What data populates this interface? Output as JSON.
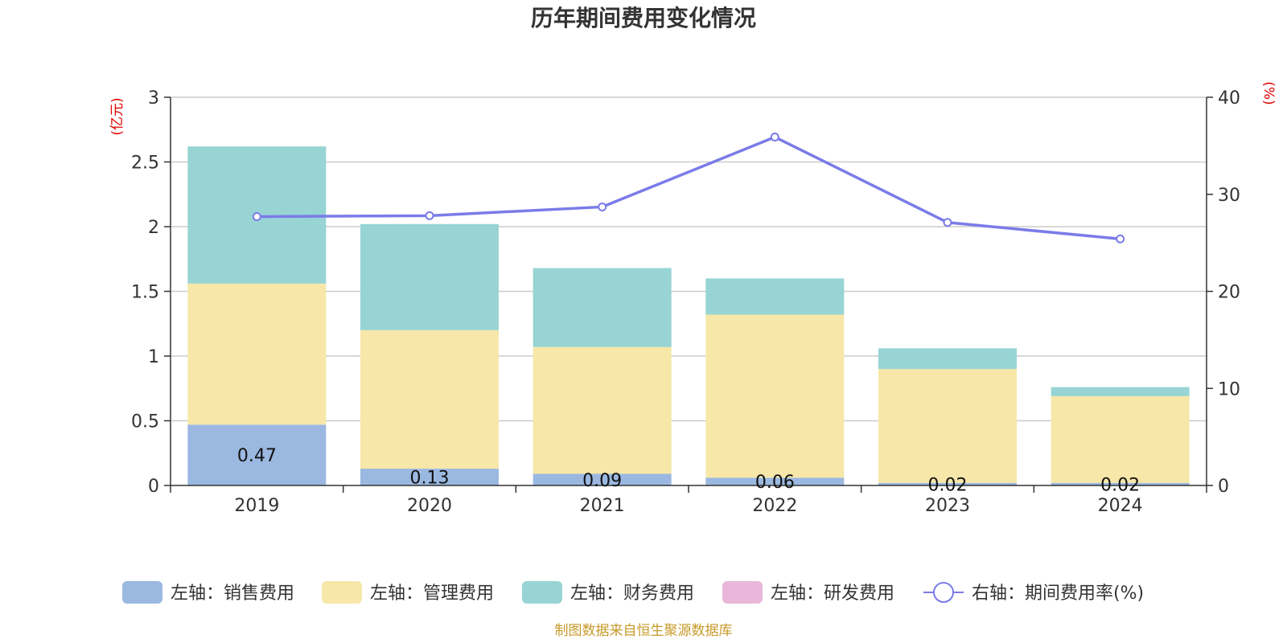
{
  "chart_data": {
    "type": "bar",
    "title": "历年期间费用变化情况",
    "categories": [
      "2019",
      "2020",
      "2021",
      "2022",
      "2023",
      "2024"
    ],
    "left_axis": {
      "unit": "(亿元)",
      "ylim": [
        0,
        3
      ],
      "ticks": [
        "0",
        "0.5",
        "1",
        "1.5",
        "2",
        "2.5",
        "3"
      ]
    },
    "right_axis": {
      "unit": "(%)",
      "ylim": [
        0,
        40
      ],
      "ticks": [
        "0",
        "10",
        "20",
        "30",
        "40"
      ]
    },
    "grid": true,
    "legend_position": "bottom",
    "series": [
      {
        "name": "左轴：销售费用",
        "axis": "left",
        "kind": "bar",
        "color": "#9bb8e1",
        "values": [
          0.47,
          0.13,
          0.09,
          0.06,
          0.02,
          0.02
        ],
        "labels": [
          "0.47",
          "0.13",
          "0.09",
          "0.06",
          "0.02",
          "0.02"
        ]
      },
      {
        "name": "左轴：管理费用",
        "axis": "left",
        "kind": "bar",
        "color": "#f7e7a8",
        "values": [
          1.09,
          1.07,
          0.98,
          1.26,
          0.88,
          0.67
        ]
      },
      {
        "name": "左轴：财务费用",
        "axis": "left",
        "kind": "bar",
        "color": "#98d4d4",
        "values": [
          1.06,
          0.82,
          0.61,
          0.28,
          0.16,
          0.07
        ]
      },
      {
        "name": "左轴：研发费用",
        "axis": "left",
        "kind": "bar",
        "color": "#e8b7d9",
        "values": [
          0,
          0,
          0,
          0,
          0,
          0
        ]
      },
      {
        "name": "右轴：期间费用率(%)",
        "axis": "right",
        "kind": "line",
        "color": "#7b7be8",
        "values": [
          27.7,
          27.8,
          28.7,
          35.9,
          27.1,
          25.4
        ]
      }
    ],
    "source": "制图数据来自恒生聚源数据库"
  }
}
